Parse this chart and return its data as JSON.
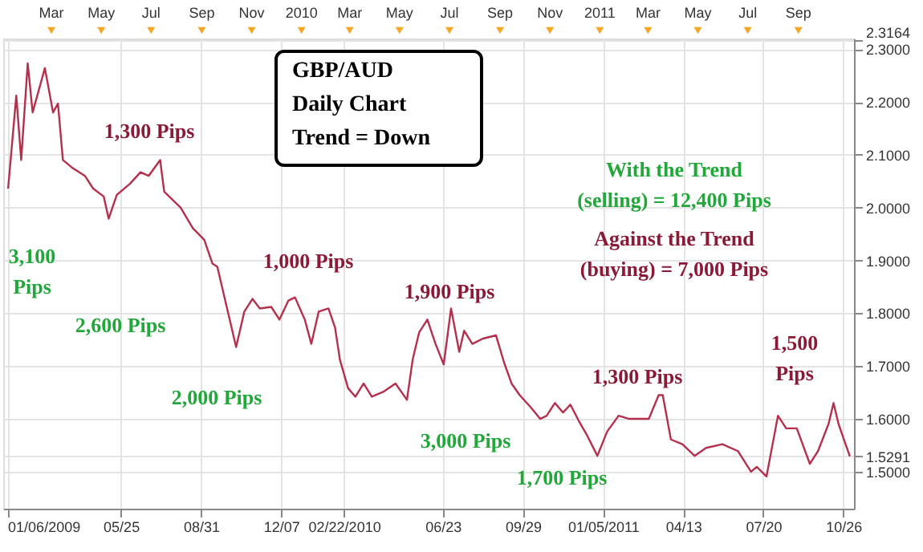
{
  "chart_data": {
    "type": "line",
    "title": "GBP/AUD\nDaily Chart\nTrend = Down",
    "x": [
      "2009-01-07",
      "2009-01-17",
      "2009-01-23",
      "2009-01-31",
      "2009-02-06",
      "2009-02-21",
      "2009-03-03",
      "2009-03-09",
      "2009-03-15",
      "2009-03-26",
      "2009-04-11",
      "2009-04-21",
      "2009-05-04",
      "2009-05-10",
      "2009-05-20",
      "2009-06-05",
      "2009-06-18",
      "2009-06-28",
      "2009-07-12",
      "2009-07-17",
      "2009-08-06",
      "2009-08-21",
      "2009-09-04",
      "2009-09-14",
      "2009-09-20",
      "2009-10-13",
      "2009-10-23",
      "2009-11-02",
      "2009-11-11",
      "2009-11-25",
      "2009-12-05",
      "2009-12-16",
      "2009-12-24",
      "2010-01-05",
      "2010-01-13",
      "2010-01-22",
      "2010-02-03",
      "2010-02-11",
      "2010-02-17",
      "2010-02-27",
      "2010-03-08",
      "2010-03-18",
      "2010-03-28",
      "2010-04-12",
      "2010-04-26",
      "2010-05-10",
      "2010-05-17",
      "2010-05-25",
      "2010-06-04",
      "2010-06-14",
      "2010-06-24",
      "2010-07-03",
      "2010-07-13",
      "2010-07-19",
      "2010-07-29",
      "2010-08-11",
      "2010-08-27",
      "2010-09-06",
      "2010-09-15",
      "2010-09-25",
      "2010-10-09",
      "2010-10-20",
      "2010-10-28",
      "2010-11-07",
      "2010-11-17",
      "2010-11-26",
      "2010-12-06",
      "2010-12-16",
      "2010-12-29",
      "2011-01-10",
      "2011-01-24",
      "2011-02-06",
      "2011-02-16",
      "2011-03-02",
      "2011-03-14",
      "2011-03-19",
      "2011-03-29",
      "2011-04-12",
      "2011-04-27",
      "2011-05-11",
      "2011-05-31",
      "2011-06-19",
      "2011-07-05",
      "2011-07-12",
      "2011-07-24",
      "2011-08-07",
      "2011-08-17",
      "2011-08-30",
      "2011-09-15",
      "2011-09-25",
      "2011-10-08",
      "2011-10-14",
      "2011-10-20",
      "2011-10-28",
      "2011-11-03"
    ],
    "series": [
      {
        "color": "#b5304c",
        "values": [
          2.036,
          2.212,
          2.09,
          2.273,
          2.18,
          2.264,
          2.18,
          2.197,
          2.09,
          2.076,
          2.06,
          2.036,
          2.021,
          1.979,
          2.024,
          2.045,
          2.067,
          2.06,
          2.09,
          2.03,
          2.0,
          1.961,
          1.939,
          1.894,
          1.888,
          1.736,
          1.803,
          1.827,
          1.809,
          1.812,
          1.788,
          1.824,
          1.83,
          1.788,
          1.742,
          1.803,
          1.809,
          1.773,
          1.712,
          1.658,
          1.642,
          1.667,
          1.642,
          1.652,
          1.667,
          1.636,
          1.712,
          1.764,
          1.788,
          1.742,
          1.703,
          1.809,
          1.727,
          1.767,
          1.742,
          1.752,
          1.758,
          1.706,
          1.667,
          1.645,
          1.621,
          1.6,
          1.606,
          1.63,
          1.612,
          1.627,
          1.597,
          1.57,
          1.53,
          1.576,
          1.606,
          1.6,
          1.6,
          1.6,
          1.645,
          1.645,
          1.561,
          1.552,
          1.53,
          1.545,
          1.552,
          1.539,
          1.5,
          1.509,
          1.491,
          1.606,
          1.582,
          1.582,
          1.515,
          1.539,
          1.591,
          1.63,
          1.591,
          1.555,
          1.5291
        ]
      }
    ],
    "xlim": [
      "2009-01-01",
      "2011-11-08"
    ],
    "xticks": [
      {
        "value": "2009-01-06",
        "label": "01/06/2009"
      },
      {
        "value": "2009-05-25",
        "label": "05/25"
      },
      {
        "value": "2009-08-31",
        "label": "08/31"
      },
      {
        "value": "2009-12-07",
        "label": "12/07"
      },
      {
        "value": "2010-02-22",
        "label": "02/22/2010"
      },
      {
        "value": "2010-06-23",
        "label": "06/23"
      },
      {
        "value": "2010-09-29",
        "label": "09/29"
      },
      {
        "value": "2011-01-05",
        "label": "01/05/2011"
      },
      {
        "value": "2011-04-13",
        "label": "04/13"
      },
      {
        "value": "2011-07-20",
        "label": "07/20"
      },
      {
        "value": "2011-10-26",
        "label": "10/26"
      }
    ],
    "x2lim": [
      "2009-01-01",
      "2011-11-08"
    ],
    "x2ticks": [
      {
        "value": "2009-03-01",
        "label": "Mar"
      },
      {
        "value": "2009-05-01",
        "label": "May"
      },
      {
        "value": "2009-07-01",
        "label": "Jul"
      },
      {
        "value": "2009-09-01",
        "label": "Sep"
      },
      {
        "value": "2009-11-01",
        "label": "Nov"
      },
      {
        "value": "2010-01-01",
        "label": "2010"
      },
      {
        "value": "2010-03-01",
        "label": "Mar"
      },
      {
        "value": "2010-05-01",
        "label": "May"
      },
      {
        "value": "2010-07-01",
        "label": "Jul"
      },
      {
        "value": "2010-09-01",
        "label": "Sep"
      },
      {
        "value": "2010-11-01",
        "label": "Nov"
      },
      {
        "value": "2011-01-01",
        "label": "2011"
      },
      {
        "value": "2011-03-01",
        "label": "Mar"
      },
      {
        "value": "2011-05-01",
        "label": "May"
      },
      {
        "value": "2011-07-01",
        "label": "Jul"
      },
      {
        "value": "2011-09-01",
        "label": "Sep"
      }
    ],
    "ylim": [
      1.43,
      2.32
    ],
    "yticks": [
      {
        "value": 1.5,
        "label": "1.5000"
      },
      1.5291,
      {
        "value": 1.6,
        "label": "1.6000"
      },
      {
        "value": 1.7,
        "label": "1.7000"
      },
      {
        "value": 1.8,
        "label": "1.8000"
      },
      {
        "value": 1.9,
        "label": "1.9000"
      },
      {
        "value": 2.0,
        "label": "2.0000"
      },
      {
        "value": 2.1,
        "label": "2.1000"
      },
      {
        "value": 2.2,
        "label": "2.2000"
      },
      {
        "value": 2.3,
        "label": "2.3000"
      },
      2.3164
    ],
    "grid": true,
    "marker": "none",
    "line_style": "solid",
    "annotations": [
      "3,100\nPips",
      "1,300 Pips",
      "2,600 Pips",
      "1,000 Pips",
      "2,000 Pips",
      "1,900 Pips",
      "3,000 Pips",
      "1,300 Pips",
      "1,700 Pips",
      "1,500\nPips",
      "With the Trend\n(selling) = 12,400 Pips",
      "Against the Trend\n(buying) = 7,000 Pips"
    ]
  }
}
